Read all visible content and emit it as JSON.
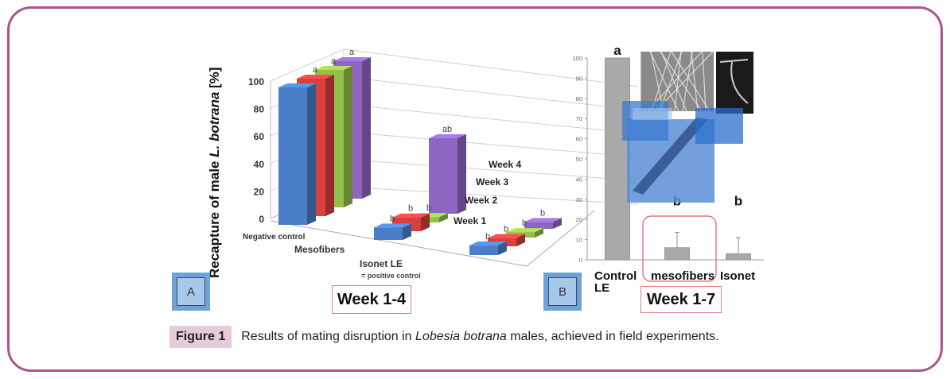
{
  "frame": {
    "border_color": "#a9558a"
  },
  "chart_data": [
    {
      "type": "bar",
      "subtype": "3d-grouped",
      "panel": "A",
      "title": "",
      "ylabel_prefix": "Recapture of male ",
      "ylabel_italic": "L. botrana",
      "ylabel_suffix": " [%]",
      "ylim": [
        0,
        100
      ],
      "yticks": [
        0,
        20,
        40,
        60,
        80,
        100
      ],
      "grid": true,
      "categories": [
        "Negative control",
        "Mesofibers",
        "Isonet LE"
      ],
      "category_note": "= positive  control",
      "series": [
        {
          "name": "Week 1",
          "color": "#4a7fc8",
          "values": [
            100,
            9,
            7
          ],
          "labels": [
            "",
            "b",
            "b"
          ]
        },
        {
          "name": "Week 2",
          "color": "#d7403e",
          "values": [
            100,
            10,
            6
          ],
          "labels": [
            "a",
            "b",
            "b"
          ]
        },
        {
          "name": "Week 3",
          "color": "#93bf4b",
          "values": [
            100,
            4,
            4
          ],
          "labels": [
            "a",
            "b",
            "b"
          ]
        },
        {
          "name": "Week 4",
          "color": "#8e66c1",
          "values": [
            100,
            55,
            5
          ],
          "labels": [
            "a",
            "ab",
            "b"
          ]
        }
      ],
      "period_label": "Week 1-4"
    },
    {
      "type": "bar",
      "panel": "B",
      "title": "",
      "ylim": [
        0,
        100
      ],
      "yticks": [
        0,
        10,
        20,
        30,
        40,
        50,
        60,
        70,
        80,
        90,
        100
      ],
      "categories": [
        "Control LE",
        "mesofibers",
        "Isonet"
      ],
      "category_lines": [
        [
          "Control",
          "LE"
        ],
        [
          "mesofibers"
        ],
        [
          "Isonet"
        ]
      ],
      "values": [
        100,
        6,
        3
      ],
      "error_upper": [
        null,
        13.5,
        11
      ],
      "labels": [
        "a",
        "b",
        "b"
      ],
      "bar_color": "#a9a9a9",
      "period_label": "Week 1-7"
    }
  ],
  "panels": {
    "a_label": "A",
    "b_label": "B"
  },
  "caption": {
    "figure_label": "Figure 1",
    "text_before": "Results of mating disruption in ",
    "text_italic": "Lobesia botrana",
    "text_after": " males, achieved in field experiments."
  }
}
